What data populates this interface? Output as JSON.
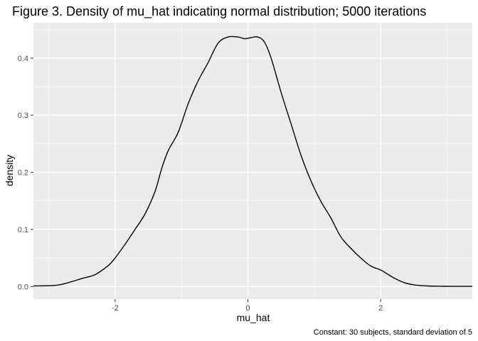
{
  "chart_data": {
    "type": "line",
    "title": "Figure 3. Density of mu_hat indicating normal distribution; 5000 iterations",
    "xlabel": "mu_hat",
    "ylabel": "density",
    "caption": "Constant: 30 subjects, standard deviation of 5",
    "xlim": [
      -3.23,
      3.38
    ],
    "ylim": [
      -0.022,
      0.462
    ],
    "x_ticks": [
      -2,
      0,
      2
    ],
    "x_tick_labels": [
      "-2",
      "0",
      "2"
    ],
    "y_ticks": [
      0.0,
      0.1,
      0.2,
      0.3,
      0.4
    ],
    "y_tick_labels": [
      "0.0",
      "0.1",
      "0.2",
      "0.3",
      "0.4"
    ],
    "grid": true,
    "legend": "none",
    "colors": {
      "panel": "#ebebeb",
      "grid_major": "#ffffff",
      "line": "#000000",
      "tick_text": "#4d4d4d",
      "tick_mark": "#333333"
    },
    "series": [
      {
        "x": [
          -3.23,
          -2.9,
          -2.7,
          -2.5,
          -2.3,
          -2.1,
          -2.0,
          -1.85,
          -1.7,
          -1.55,
          -1.4,
          -1.3,
          -1.2,
          -1.05,
          -0.9,
          -0.75,
          -0.6,
          -0.45,
          -0.3,
          -0.15,
          -0.05,
          0.05,
          0.15,
          0.25,
          0.35,
          0.5,
          0.65,
          0.8,
          0.95,
          1.1,
          1.25,
          1.4,
          1.55,
          1.7,
          1.85,
          2.0,
          2.1,
          2.2,
          2.35,
          2.5,
          2.7,
          2.9,
          3.1,
          3.38
        ],
        "y": [
          0.001,
          0.002,
          0.007,
          0.014,
          0.021,
          0.037,
          0.05,
          0.074,
          0.1,
          0.127,
          0.166,
          0.206,
          0.238,
          0.27,
          0.32,
          0.36,
          0.392,
          0.426,
          0.437,
          0.437,
          0.434,
          0.436,
          0.437,
          0.428,
          0.4,
          0.34,
          0.285,
          0.23,
          0.185,
          0.149,
          0.12,
          0.087,
          0.067,
          0.05,
          0.036,
          0.029,
          0.022,
          0.015,
          0.007,
          0.003,
          0.001,
          0.0005,
          0.0003,
          0.0003
        ]
      }
    ]
  }
}
